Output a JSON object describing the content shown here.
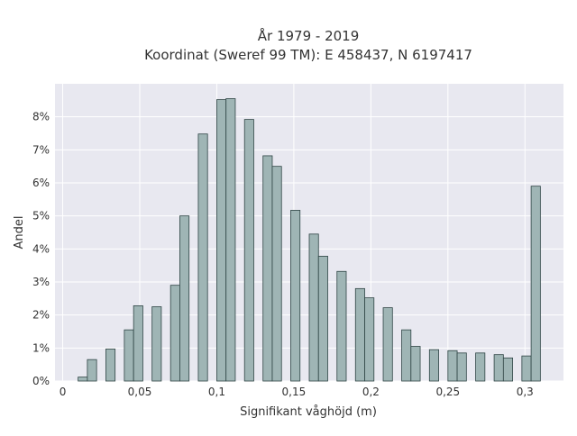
{
  "chart_data": {
    "type": "bar",
    "title_line1": "År 1979 - 2019",
    "title_line2": "Koordinat (Sweref 99 TM): E 458437, N 6197417",
    "xlabel": "Signifikant våghöjd (m)",
    "ylabel": "Andel",
    "xlim": [
      -0.005,
      0.325
    ],
    "ylim": [
      0,
      9
    ],
    "bin_width": 0.006,
    "grid": true,
    "x_ticks": [
      {
        "value": 0,
        "label": "0"
      },
      {
        "value": 0.05,
        "label": "0,05"
      },
      {
        "value": 0.1,
        "label": "0,1"
      },
      {
        "value": 0.15,
        "label": "0,15"
      },
      {
        "value": 0.2,
        "label": "0,2"
      },
      {
        "value": 0.25,
        "label": "0,25"
      },
      {
        "value": 0.3,
        "label": "0,3"
      }
    ],
    "y_ticks": [
      {
        "value": 0,
        "label": "0%"
      },
      {
        "value": 1,
        "label": "1%"
      },
      {
        "value": 2,
        "label": "2%"
      },
      {
        "value": 3,
        "label": "3%"
      },
      {
        "value": 4,
        "label": "4%"
      },
      {
        "value": 5,
        "label": "5%"
      },
      {
        "value": 6,
        "label": "6%"
      },
      {
        "value": 7,
        "label": "7%"
      },
      {
        "value": 8,
        "label": "8%"
      }
    ],
    "bars": [
      {
        "x": 0.013,
        "value": 0.12
      },
      {
        "x": 0.019,
        "value": 0.65
      },
      {
        "x": 0.031,
        "value": 0.97
      },
      {
        "x": 0.043,
        "value": 1.55
      },
      {
        "x": 0.049,
        "value": 2.28
      },
      {
        "x": 0.061,
        "value": 2.25
      },
      {
        "x": 0.073,
        "value": 2.9
      },
      {
        "x": 0.079,
        "value": 5.0
      },
      {
        "x": 0.091,
        "value": 7.48
      },
      {
        "x": 0.103,
        "value": 8.52
      },
      {
        "x": 0.109,
        "value": 8.55
      },
      {
        "x": 0.121,
        "value": 7.92
      },
      {
        "x": 0.133,
        "value": 6.82
      },
      {
        "x": 0.139,
        "value": 6.5
      },
      {
        "x": 0.151,
        "value": 5.17
      },
      {
        "x": 0.163,
        "value": 4.45
      },
      {
        "x": 0.169,
        "value": 3.78
      },
      {
        "x": 0.181,
        "value": 3.32
      },
      {
        "x": 0.193,
        "value": 2.8
      },
      {
        "x": 0.199,
        "value": 2.52
      },
      {
        "x": 0.211,
        "value": 2.22
      },
      {
        "x": 0.223,
        "value": 1.55
      },
      {
        "x": 0.229,
        "value": 1.05
      },
      {
        "x": 0.241,
        "value": 0.95
      },
      {
        "x": 0.253,
        "value": 0.92
      },
      {
        "x": 0.259,
        "value": 0.85
      },
      {
        "x": 0.271,
        "value": 0.85
      },
      {
        "x": 0.283,
        "value": 0.8
      },
      {
        "x": 0.289,
        "value": 0.7
      },
      {
        "x": 0.301,
        "value": 0.76
      },
      {
        "x": 0.307,
        "value": 5.9
      }
    ],
    "colors": {
      "bar_fill": "#9fb5b5",
      "bar_stroke": "#2f4545",
      "plot_bg": "#e8e8f0",
      "grid": "#ffffff"
    }
  }
}
